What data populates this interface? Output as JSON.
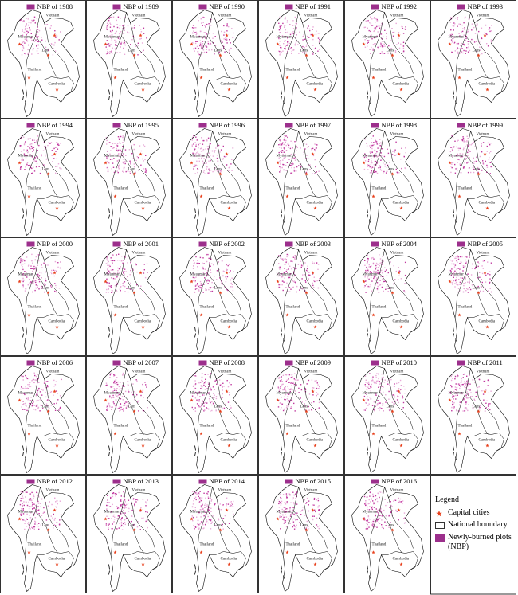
{
  "panels": [
    {
      "title": "NBP of 1988"
    },
    {
      "title": "NBP of 1989"
    },
    {
      "title": "NBP of 1990"
    },
    {
      "title": "NBP of 1991"
    },
    {
      "title": "NBP of 1992"
    },
    {
      "title": "NBP of 1993"
    },
    {
      "title": "NBP of 1994"
    },
    {
      "title": "NBP of 1995"
    },
    {
      "title": "NBP of 1996"
    },
    {
      "title": "NBP of 1997"
    },
    {
      "title": "NBP of 1998"
    },
    {
      "title": "NBP of 1999"
    },
    {
      "title": "NBP of 2000"
    },
    {
      "title": "NBP of 2001"
    },
    {
      "title": "NBP of 2002"
    },
    {
      "title": "NBP of 2003"
    },
    {
      "title": "NBP of 2004"
    },
    {
      "title": "NBP of 2005"
    },
    {
      "title": "NBP of 2006"
    },
    {
      "title": "NBP of 2007"
    },
    {
      "title": "NBP of 2008"
    },
    {
      "title": "NBP of 2009"
    },
    {
      "title": "NBP of 2010"
    },
    {
      "title": "NBP of 2011"
    },
    {
      "title": "NBP of 2012"
    },
    {
      "title": "NBP of 2013"
    },
    {
      "title": "NBP of 2014"
    },
    {
      "title": "NBP of 2015"
    },
    {
      "title": "NBP of 2016"
    }
  ],
  "country_labels": {
    "myanmar": "Myanmar",
    "vietnam": "Vietnam",
    "laos": "Laos",
    "thailand": "Thailand",
    "cambodia": "Cambodia"
  },
  "legend": {
    "title": "Legend",
    "capital": "Capital cities",
    "boundary": "National boundary",
    "nbp": "Newly-burned plots (NBP)"
  }
}
